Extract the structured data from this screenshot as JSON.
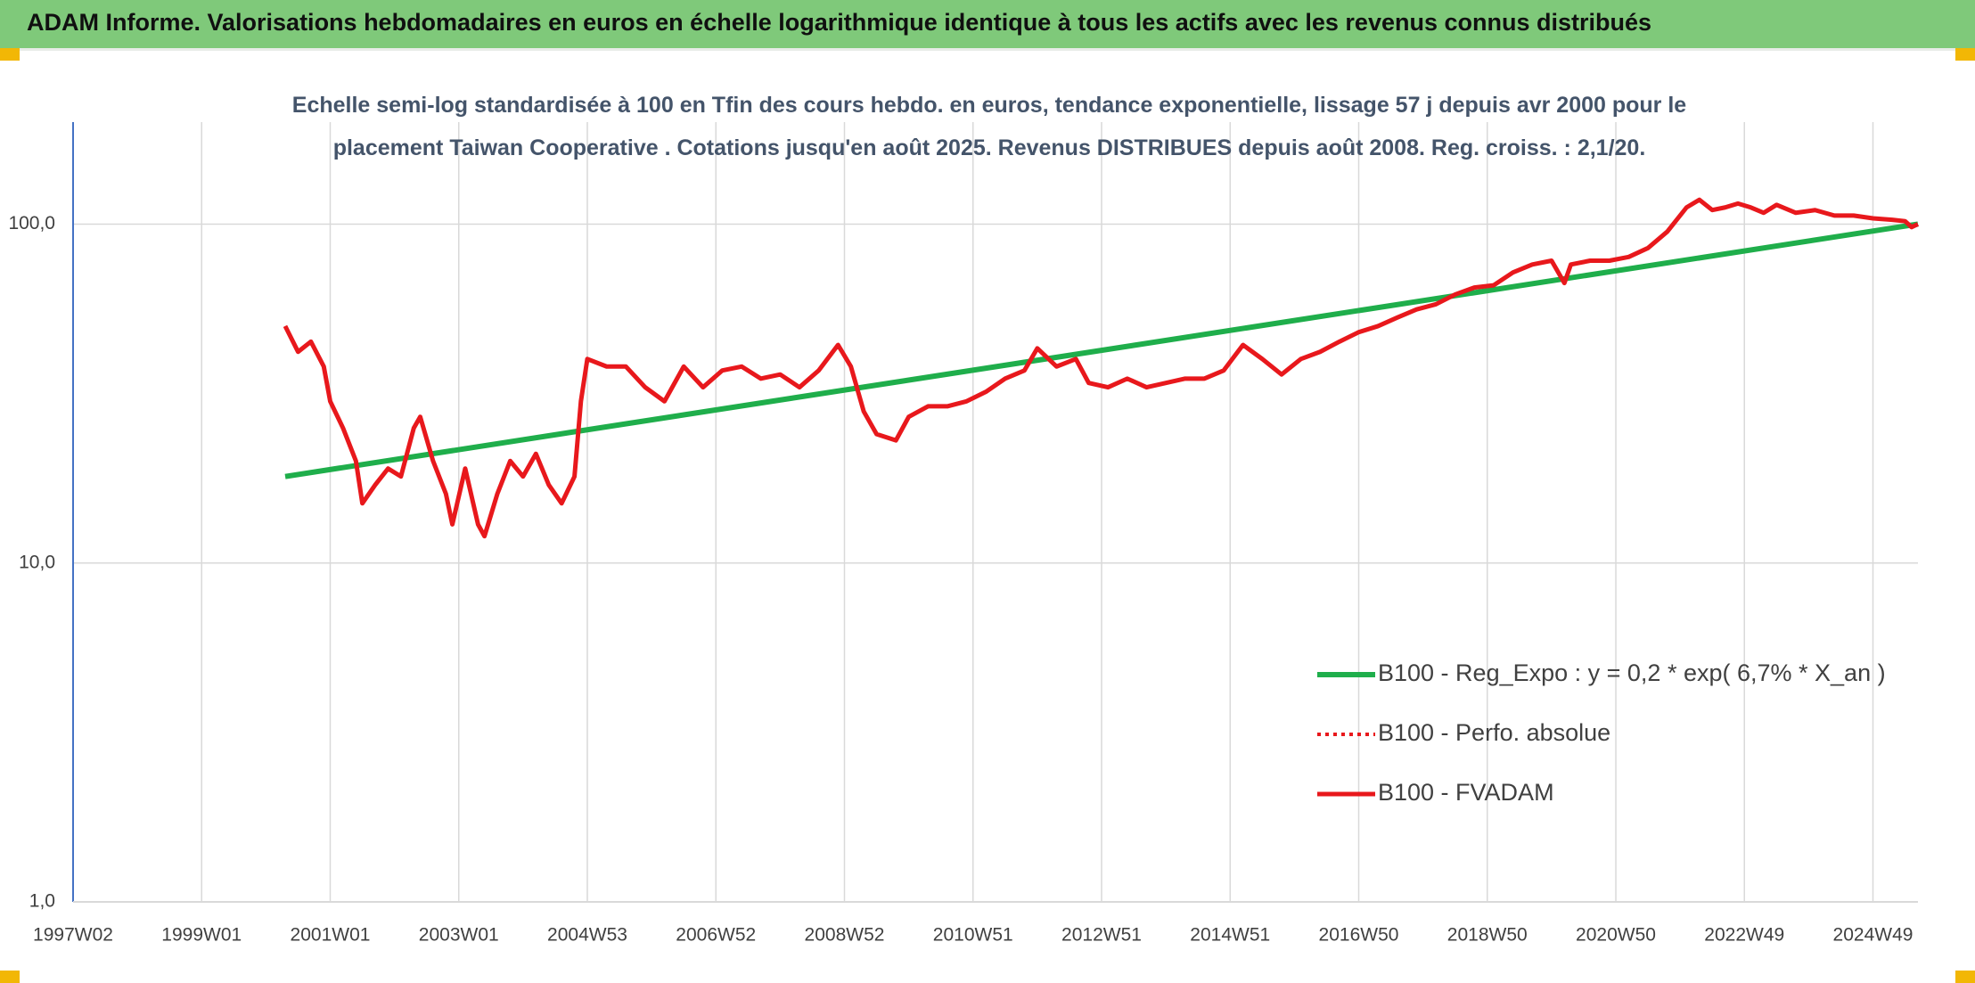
{
  "chart_data": {
    "type": "line",
    "title": "ADAM Informe. Valorisations hebdomadaires en euros en échelle logarithmique identique à tous les actifs avec les revenus connus distribués",
    "subtitle": "Echelle semi-log standardisée à 100 en Tfin des cours hebdo. en euros, tendance exponentielle, lissage 57 j depuis avr 2000 pour le placement Taiwan Cooperative . Cotations jusqu'en août 2025. Revenus DISTRIBUES depuis août 2008. Reg. croiss. : 2,1/20.",
    "log_y": true,
    "grid": true,
    "legend": "lower right",
    "xlim": [
      1997,
      2025.7
    ],
    "xticks": [
      {
        "value": 1997,
        "label": "1997W02"
      },
      {
        "value": 1999,
        "label": "1999W01"
      },
      {
        "value": 2001,
        "label": "2001W01"
      },
      {
        "value": 2003,
        "label": "2003W01"
      },
      {
        "value": 2005,
        "label": "2004W53"
      },
      {
        "value": 2007,
        "label": "2006W52"
      },
      {
        "value": 2009,
        "label": "2008W52"
      },
      {
        "value": 2011,
        "label": "2010W51"
      },
      {
        "value": 2013,
        "label": "2012W51"
      },
      {
        "value": 2015,
        "label": "2014W51"
      },
      {
        "value": 2017,
        "label": "2016W50"
      },
      {
        "value": 2019,
        "label": "2018W50"
      },
      {
        "value": 2021,
        "label": "2020W50"
      },
      {
        "value": 2023,
        "label": "2022W49"
      },
      {
        "value": 2025,
        "label": "2024W49"
      }
    ],
    "ylim": [
      1,
      200
    ],
    "yticks": [
      {
        "value": 1,
        "label": "1,0"
      },
      {
        "value": 10,
        "label": "10,0"
      },
      {
        "value": 100,
        "label": "100,0"
      }
    ],
    "series": [
      {
        "name": "B100 - Reg_Expo : y = 0,2 * exp( 6,7% *  X_an )",
        "color": "#1fae4b",
        "style": "solid",
        "width": 6,
        "x": [
          2000.3,
          2025.7
        ],
        "values": [
          18,
          100
        ]
      },
      {
        "name": "B100 - Perfo. absolue",
        "color": "#e8181c",
        "style": "dotted",
        "width": 4,
        "x": [
          2000.3,
          2000.5,
          2000.7,
          2000.9,
          2001.0,
          2001.2,
          2001.4,
          2001.5,
          2001.7,
          2001.9,
          2002.1,
          2002.3,
          2002.4,
          2002.6,
          2002.8,
          2002.9,
          2003.1,
          2003.3,
          2003.4,
          2003.6,
          2003.8,
          2004.0,
          2004.2,
          2004.4,
          2004.6,
          2004.8,
          2004.9,
          2005.0,
          2005.3,
          2005.6,
          2005.9,
          2006.2,
          2006.5,
          2006.8,
          2007.1,
          2007.4,
          2007.7,
          2008.0,
          2008.3,
          2008.6,
          2008.9,
          2009.1,
          2009.3,
          2009.5,
          2009.8,
          2010.0,
          2010.3,
          2010.6,
          2010.9,
          2011.2,
          2011.5,
          2011.8,
          2012.0,
          2012.3,
          2012.6,
          2012.8,
          2013.1,
          2013.4,
          2013.7,
          2014.0,
          2014.3,
          2014.6,
          2014.9,
          2015.2,
          2015.5,
          2015.8,
          2016.1,
          2016.4,
          2016.7,
          2017.0,
          2017.3,
          2017.6,
          2017.9,
          2018.2,
          2018.5,
          2018.8,
          2019.1,
          2019.4,
          2019.7,
          2020.0,
          2020.2,
          2020.3,
          2020.6,
          2020.9,
          2021.2,
          2021.5,
          2021.8,
          2022.1,
          2022.3,
          2022.5,
          2022.7,
          2022.9,
          2023.1,
          2023.3,
          2023.5,
          2023.8,
          2024.1,
          2024.4,
          2024.7,
          2025.0,
          2025.3,
          2025.5,
          2025.6,
          2025.7
        ],
        "values": [
          50,
          42,
          45,
          38,
          30,
          25,
          20,
          15,
          17,
          19,
          18,
          25,
          27,
          20,
          16,
          13,
          19,
          13,
          12,
          16,
          20,
          18,
          21,
          17,
          15,
          18,
          30,
          40,
          38,
          38,
          33,
          30,
          38,
          33,
          37,
          38,
          35,
          36,
          33,
          37,
          44,
          38,
          28,
          24,
          23,
          27,
          29,
          29,
          30,
          32,
          35,
          37,
          43,
          38,
          40,
          34,
          33,
          35,
          33,
          34,
          35,
          35,
          37,
          44,
          40,
          36,
          40,
          42,
          45,
          48,
          50,
          53,
          56,
          58,
          62,
          65,
          66,
          72,
          76,
          78,
          67,
          76,
          78,
          78,
          80,
          85,
          95,
          112,
          118,
          110,
          112,
          115,
          112,
          108,
          114,
          108,
          110,
          106,
          106,
          104,
          103,
          102,
          98,
          100
        ]
      },
      {
        "name": "B100 - FVADAM",
        "color": "#e8181c",
        "style": "solid",
        "width": 5,
        "x": [
          2000.3,
          2000.5,
          2000.7,
          2000.9,
          2001.0,
          2001.2,
          2001.4,
          2001.5,
          2001.7,
          2001.9,
          2002.1,
          2002.3,
          2002.4,
          2002.6,
          2002.8,
          2002.9,
          2003.1,
          2003.3,
          2003.4,
          2003.6,
          2003.8,
          2004.0,
          2004.2,
          2004.4,
          2004.6,
          2004.8,
          2004.9,
          2005.0,
          2005.3,
          2005.6,
          2005.9,
          2006.2,
          2006.5,
          2006.8,
          2007.1,
          2007.4,
          2007.7,
          2008.0,
          2008.3,
          2008.6,
          2008.9,
          2009.1,
          2009.3,
          2009.5,
          2009.8,
          2010.0,
          2010.3,
          2010.6,
          2010.9,
          2011.2,
          2011.5,
          2011.8,
          2012.0,
          2012.3,
          2012.6,
          2012.8,
          2013.1,
          2013.4,
          2013.7,
          2014.0,
          2014.3,
          2014.6,
          2014.9,
          2015.2,
          2015.5,
          2015.8,
          2016.1,
          2016.4,
          2016.7,
          2017.0,
          2017.3,
          2017.6,
          2017.9,
          2018.2,
          2018.5,
          2018.8,
          2019.1,
          2019.4,
          2019.7,
          2020.0,
          2020.2,
          2020.3,
          2020.6,
          2020.9,
          2021.2,
          2021.5,
          2021.8,
          2022.1,
          2022.3,
          2022.5,
          2022.7,
          2022.9,
          2023.1,
          2023.3,
          2023.5,
          2023.8,
          2024.1,
          2024.4,
          2024.7,
          2025.0,
          2025.3,
          2025.5,
          2025.6,
          2025.7
        ],
        "values": [
          50,
          42,
          45,
          38,
          30,
          25,
          20,
          15,
          17,
          19,
          18,
          25,
          27,
          20,
          16,
          13,
          19,
          13,
          12,
          16,
          20,
          18,
          21,
          17,
          15,
          18,
          30,
          40,
          38,
          38,
          33,
          30,
          38,
          33,
          37,
          38,
          35,
          36,
          33,
          37,
          44,
          38,
          28,
          24,
          23,
          27,
          29,
          29,
          30,
          32,
          35,
          37,
          43,
          38,
          40,
          34,
          33,
          35,
          33,
          34,
          35,
          35,
          37,
          44,
          40,
          36,
          40,
          42,
          45,
          48,
          50,
          53,
          56,
          58,
          62,
          65,
          66,
          72,
          76,
          78,
          67,
          76,
          78,
          78,
          80,
          85,
          95,
          112,
          118,
          110,
          112,
          115,
          112,
          108,
          114,
          108,
          110,
          106,
          106,
          104,
          103,
          102,
          98,
          100
        ]
      }
    ]
  }
}
